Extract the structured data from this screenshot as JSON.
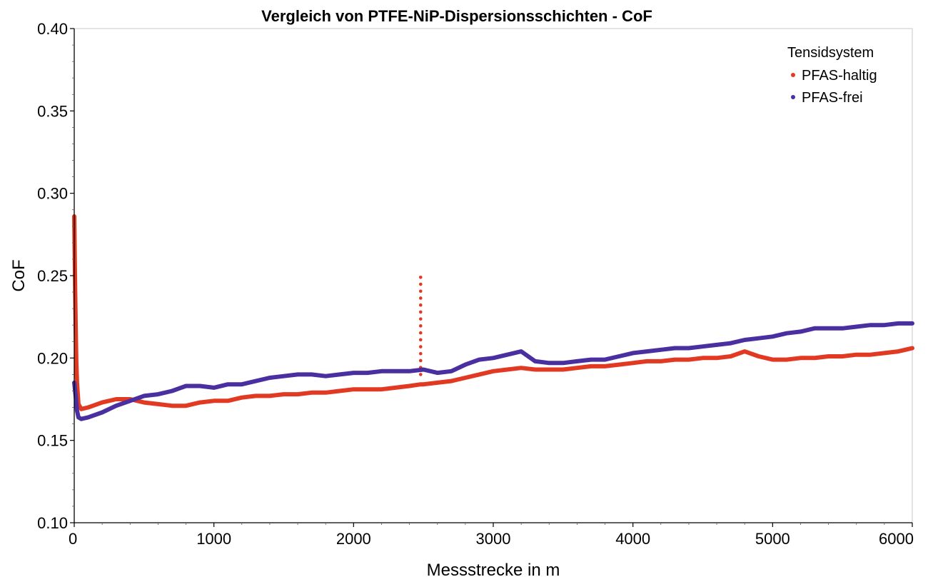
{
  "chart_data": {
    "type": "line",
    "title": "Vergleich von PTFE-NiP-Dispersionsschichten - CoF",
    "xlabel": "Messstrecke in m",
    "ylabel": "CoF",
    "xlim": [
      0,
      6000
    ],
    "ylim": [
      0.1,
      0.4
    ],
    "xticks": [
      "0",
      "1000",
      "2000",
      "3000",
      "4000",
      "5000",
      "6000"
    ],
    "yticks": [
      "0.10",
      "0.15",
      "0.20",
      "0.25",
      "0.30",
      "0.35",
      "0.40"
    ],
    "grid": false,
    "legend": {
      "title": "Tensidsystem",
      "position": "top-right"
    },
    "series": [
      {
        "name": "PFAS-haltig",
        "color": "#e23a22",
        "x": [
          0,
          5,
          10,
          15,
          20,
          30,
          50,
          100,
          200,
          300,
          400,
          500,
          600,
          700,
          800,
          900,
          1000,
          1100,
          1200,
          1300,
          1400,
          1500,
          1600,
          1700,
          1800,
          1900,
          2000,
          2100,
          2200,
          2300,
          2400,
          2480,
          2500,
          2600,
          2700,
          2800,
          2900,
          3000,
          3100,
          3200,
          3300,
          3400,
          3500,
          3600,
          3700,
          3800,
          3900,
          4000,
          4100,
          4200,
          4300,
          4400,
          4500,
          4600,
          4700,
          4800,
          4900,
          5000,
          5100,
          5200,
          5300,
          5400,
          5500,
          5600,
          5700,
          5800,
          5900,
          6000
        ],
        "y": [
          0.286,
          0.25,
          0.22,
          0.198,
          0.185,
          0.172,
          0.169,
          0.17,
          0.173,
          0.175,
          0.175,
          0.173,
          0.172,
          0.171,
          0.171,
          0.173,
          0.174,
          0.174,
          0.176,
          0.177,
          0.177,
          0.178,
          0.178,
          0.179,
          0.179,
          0.18,
          0.181,
          0.181,
          0.181,
          0.182,
          0.183,
          0.184,
          0.184,
          0.185,
          0.186,
          0.188,
          0.19,
          0.192,
          0.193,
          0.194,
          0.193,
          0.193,
          0.193,
          0.194,
          0.195,
          0.195,
          0.196,
          0.197,
          0.198,
          0.198,
          0.199,
          0.199,
          0.2,
          0.2,
          0.201,
          0.204,
          0.201,
          0.199,
          0.199,
          0.2,
          0.2,
          0.201,
          0.201,
          0.202,
          0.202,
          0.203,
          0.204,
          0.206
        ],
        "spike": {
          "x": 2480,
          "y_from": 0.19,
          "y_to": 0.249
        }
      },
      {
        "name": "PFAS-frei",
        "color": "#4a2fa0",
        "x": [
          0,
          10,
          20,
          30,
          50,
          100,
          200,
          300,
          400,
          500,
          600,
          700,
          800,
          900,
          1000,
          1100,
          1200,
          1300,
          1400,
          1500,
          1600,
          1700,
          1800,
          1900,
          2000,
          2100,
          2200,
          2300,
          2400,
          2500,
          2600,
          2700,
          2800,
          2900,
          3000,
          3100,
          3200,
          3300,
          3400,
          3500,
          3600,
          3700,
          3800,
          3900,
          4000,
          4100,
          4200,
          4300,
          4400,
          4500,
          4600,
          4700,
          4800,
          4900,
          5000,
          5100,
          5200,
          5300,
          5400,
          5500,
          5600,
          5700,
          5800,
          5900,
          6000
        ],
        "y": [
          0.185,
          0.177,
          0.168,
          0.164,
          0.163,
          0.164,
          0.167,
          0.171,
          0.174,
          0.177,
          0.178,
          0.18,
          0.183,
          0.183,
          0.182,
          0.184,
          0.184,
          0.186,
          0.188,
          0.189,
          0.19,
          0.19,
          0.189,
          0.19,
          0.191,
          0.191,
          0.192,
          0.192,
          0.192,
          0.193,
          0.191,
          0.192,
          0.196,
          0.199,
          0.2,
          0.202,
          0.204,
          0.198,
          0.197,
          0.197,
          0.198,
          0.199,
          0.199,
          0.201,
          0.203,
          0.204,
          0.205,
          0.206,
          0.206,
          0.207,
          0.208,
          0.209,
          0.211,
          0.212,
          0.213,
          0.215,
          0.216,
          0.218,
          0.218,
          0.218,
          0.219,
          0.22,
          0.22,
          0.221,
          0.221
        ]
      }
    ]
  }
}
